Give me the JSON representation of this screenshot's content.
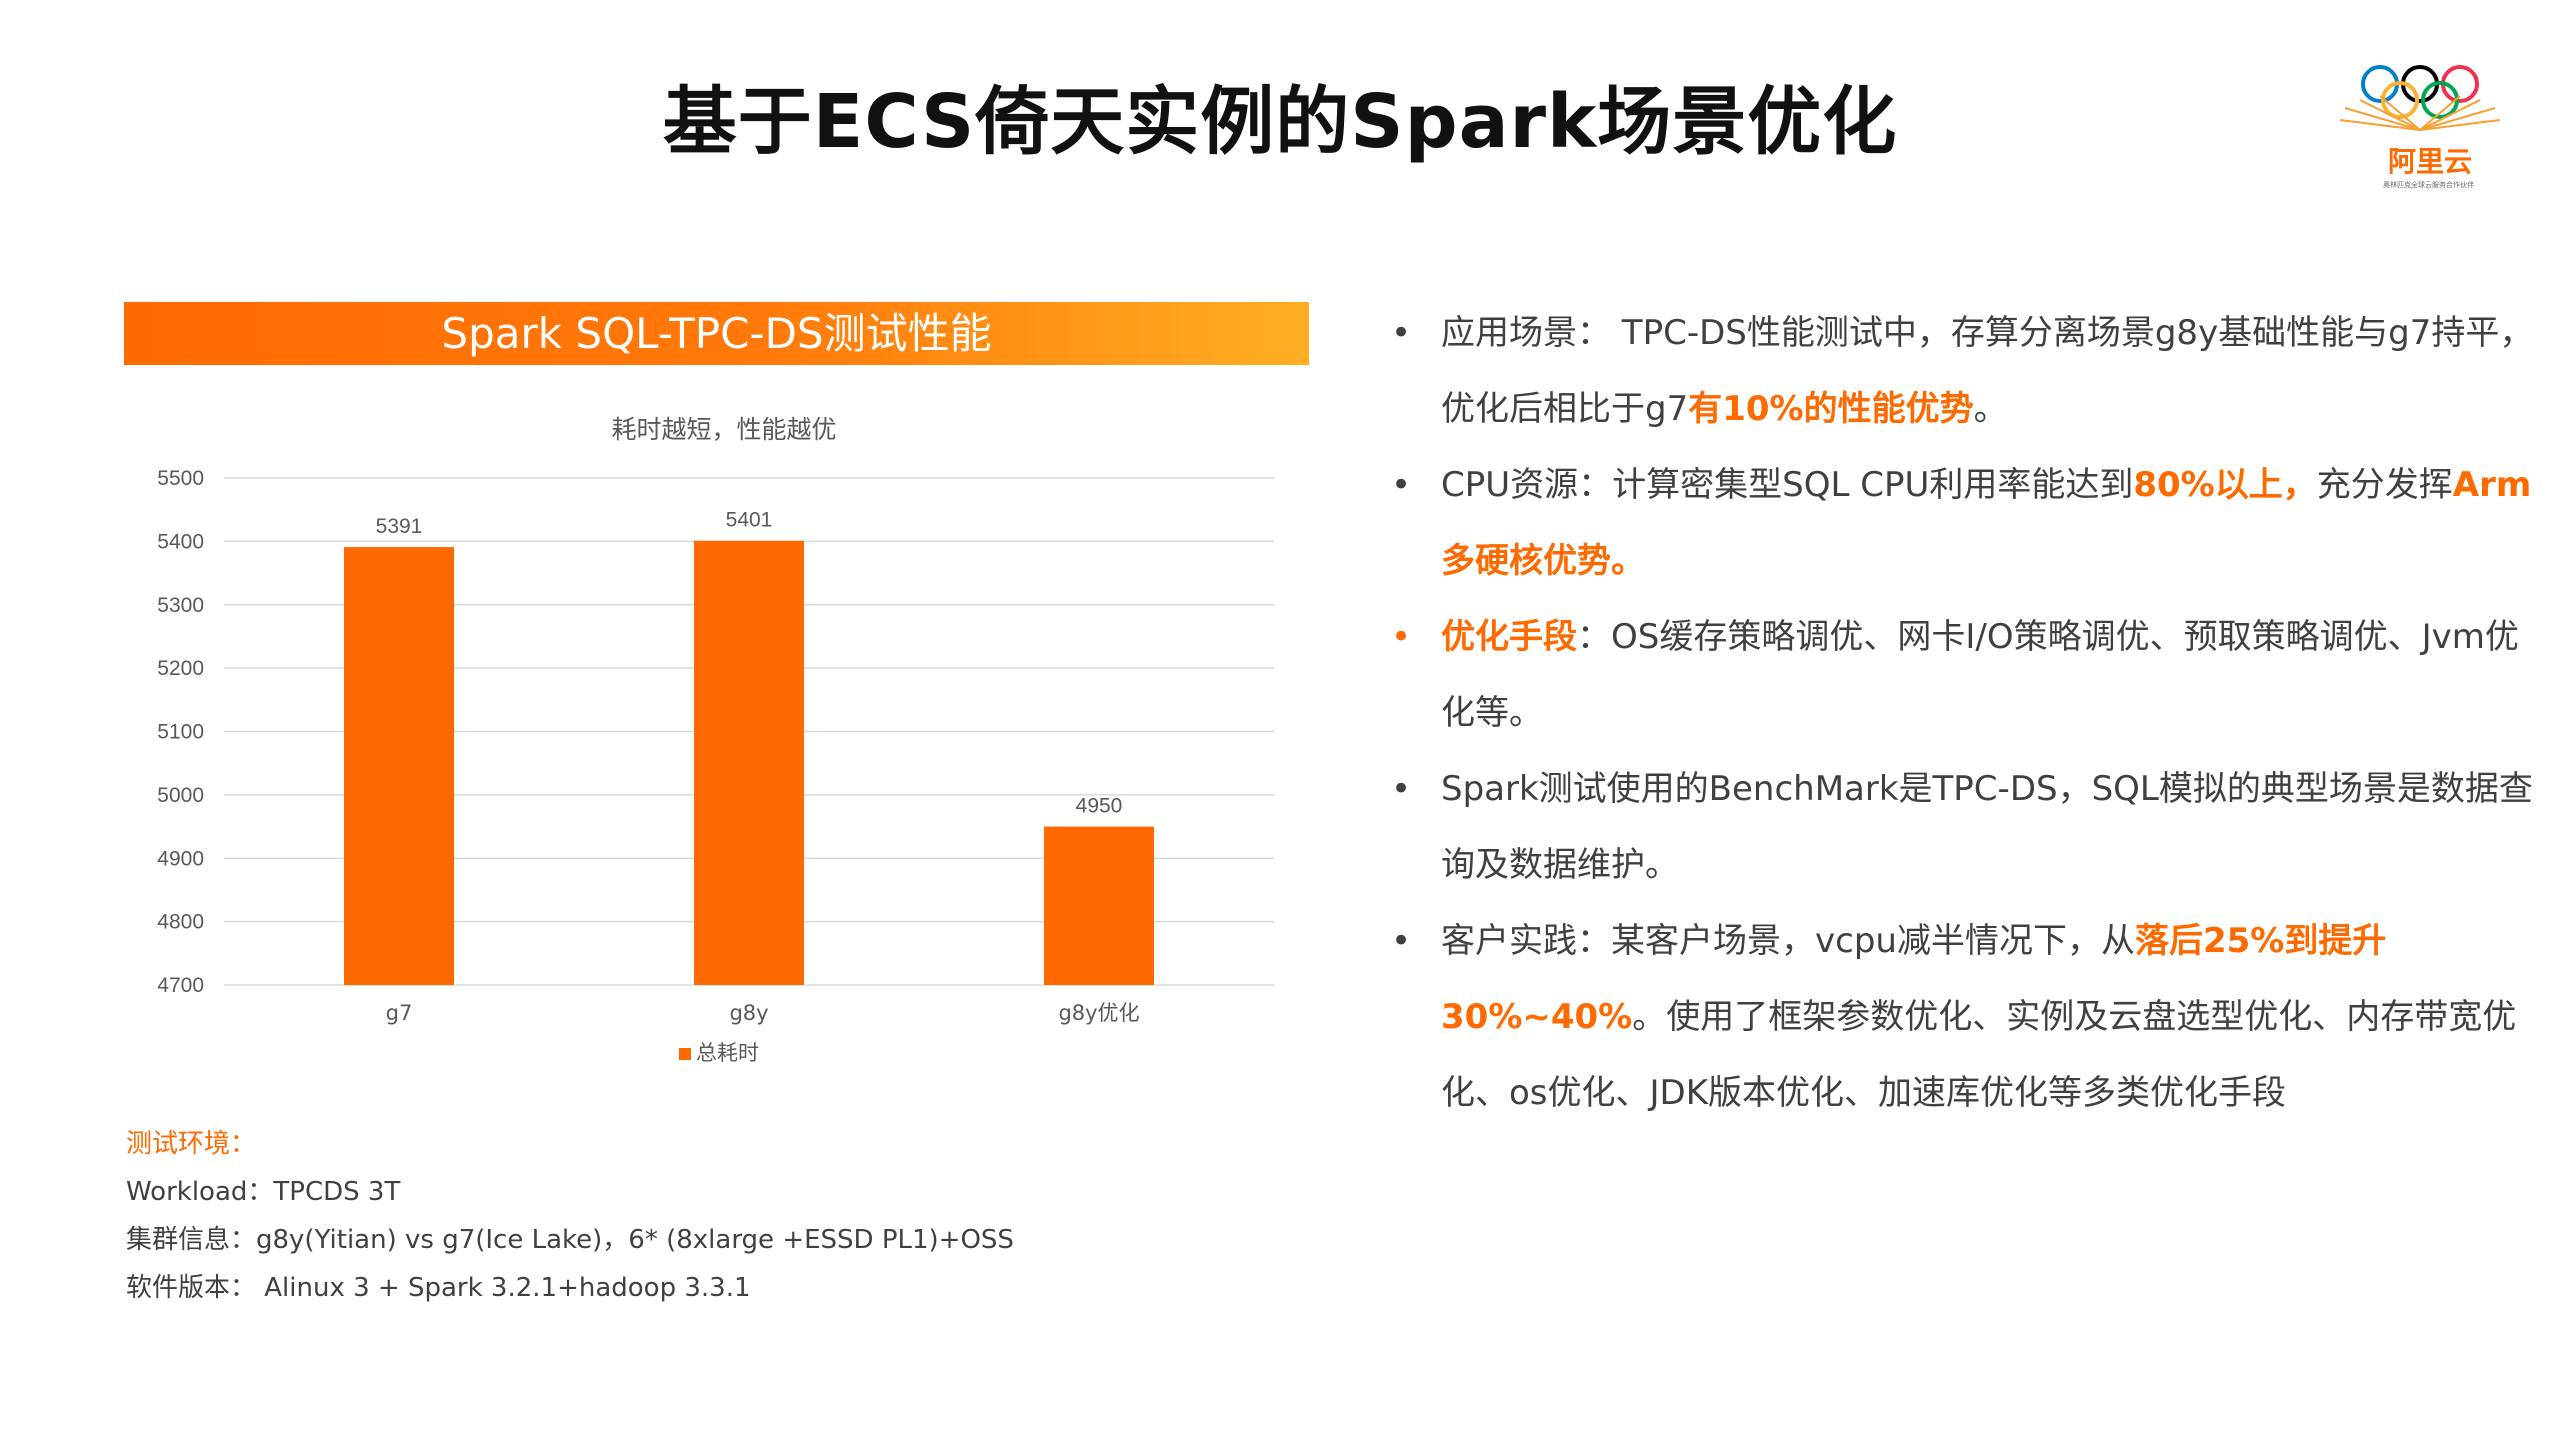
{
  "page": {
    "title": "基于ECS倚天实例的Spark场景优化"
  },
  "logo": {
    "text": "阿里云",
    "slogan": "奥林匹克全球云服务合作伙伴",
    "colors": [
      "#0081c8",
      "#fcb131",
      "#000000",
      "#00a651",
      "#ee334e"
    ]
  },
  "banner": {
    "title": "Spark SQL-TPC-DS测试性能"
  },
  "chart_data": {
    "type": "bar",
    "title": "耗时越短，性能越优",
    "categories": [
      "g7",
      "g8y",
      "g8y优化"
    ],
    "series": [
      {
        "name": "总耗时",
        "values": [
          5391,
          5401,
          4950
        ],
        "color": "#ff6a00"
      }
    ],
    "ylim": [
      4700,
      5500
    ],
    "yticks": [
      4700,
      4800,
      4900,
      5000,
      5100,
      5200,
      5300,
      5400,
      5500
    ],
    "grid": true,
    "legend": "bottom"
  },
  "environment": {
    "title": "测试环境：",
    "lines": [
      "Workload：TPCDS 3T",
      "集群信息：g8y(Yitian) vs g7(Ice Lake)，6* (8xlarge +ESSD PL1)+OSS",
      "软件版本： Alinux 3 + Spark 3.2.1+hadoop 3.3.1"
    ]
  },
  "bullets": [
    {
      "highlight_dot": false,
      "segments": [
        {
          "text": "应用场景： TPC-DS性能测试中，存算分离场景g8y基础性能与g7持平，优化后相比于g7",
          "style": "normal"
        },
        {
          "text": "有10%的性能优势",
          "style": "orange"
        },
        {
          "text": "。",
          "style": "normal"
        }
      ]
    },
    {
      "highlight_dot": false,
      "segments": [
        {
          "text": "CPU资源：计算密集型SQL CPU利用率能达到",
          "style": "normal"
        },
        {
          "text": "80%以上，",
          "style": "orange"
        },
        {
          "text": "充分发挥",
          "style": "normal"
        },
        {
          "text": "Arm多硬核优势。",
          "style": "orange"
        }
      ]
    },
    {
      "highlight_dot": true,
      "segments": [
        {
          "text": "优化手段",
          "style": "orange"
        },
        {
          "text": "：OS缓存策略调优、网卡I/O策略调优、预取策略调优、Jvm优化等。",
          "style": "normal"
        }
      ]
    },
    {
      "highlight_dot": false,
      "segments": [
        {
          "text": "Spark测试使用的BenchMark是TPC-DS，SQL模拟的典型场景是数据查询及数据维护。",
          "style": "normal"
        }
      ]
    },
    {
      "highlight_dot": false,
      "segments": [
        {
          "text": "客户实践：某客户场景，vcpu减半情况下，从",
          "style": "normal"
        },
        {
          "text": "落后25%到提升30%~40%",
          "style": "orange"
        },
        {
          "text": "。使用了框架参数优化、实例及云盘选型优化、内存带宽优化、os优化、JDK版本优化、加速库优化等多类优化手段",
          "style": "normal"
        }
      ]
    }
  ]
}
